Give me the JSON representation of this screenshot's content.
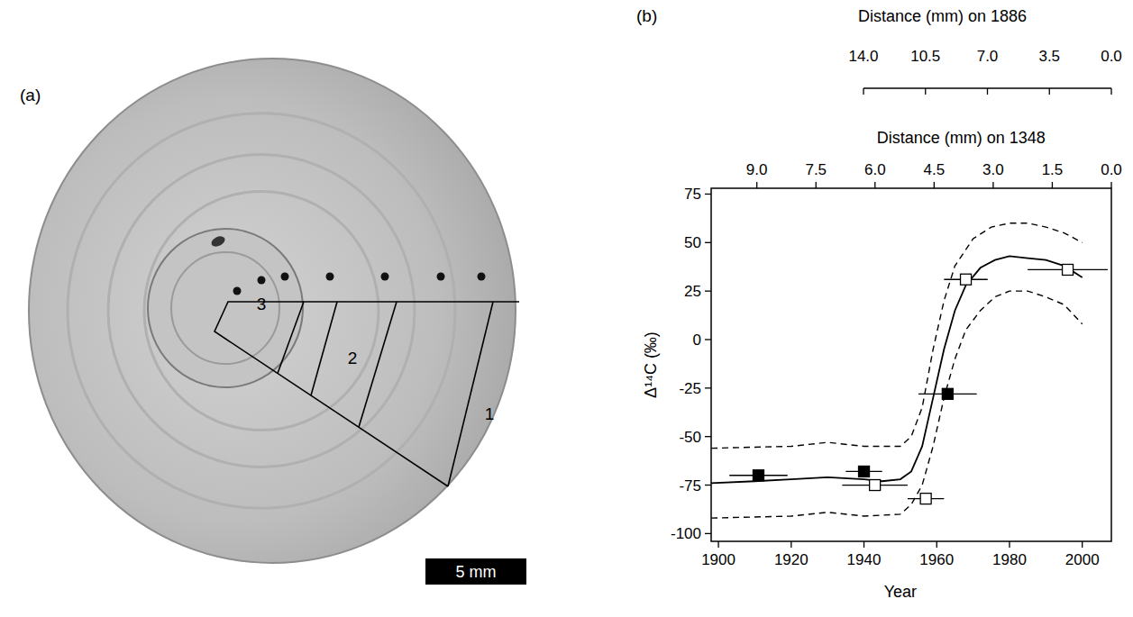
{
  "chart_data": {
    "type": "scatter",
    "panel_label": "(b)",
    "x_label": "Year",
    "y_label": "Δ¹⁴C (‰)",
    "xlim": [
      1898,
      2008
    ],
    "xticks": [
      1900,
      1920,
      1940,
      1960,
      1980,
      2000
    ],
    "ylim": [
      -104,
      78
    ],
    "yticks": [
      -100,
      -75,
      -50,
      -25,
      0,
      25,
      50,
      75
    ],
    "x2_label": "Distance (mm) on 1348",
    "x2lim": [
      10.16,
      0
    ],
    "x2ticks": [
      {
        "value": 9,
        "label": "9.0"
      },
      {
        "value": 7.5,
        "label": "7.5"
      },
      {
        "value": 6,
        "label": "6.0"
      },
      {
        "value": 4.5,
        "label": "4.5"
      },
      {
        "value": 3,
        "label": "3.0"
      },
      {
        "value": 1.5,
        "label": "1.5"
      },
      {
        "value": 0,
        "label": "0.0"
      }
    ],
    "x3_label": "Distance (mm) on 1886",
    "x3lim": [
      14,
      0
    ],
    "x3ticks": [
      {
        "value": 14,
        "label": "14.0"
      },
      {
        "value": 10.5,
        "label": "10.5"
      },
      {
        "value": 7,
        "label": "7.0"
      },
      {
        "value": 3.5,
        "label": "3.5"
      },
      {
        "value": 0,
        "label": "0.0"
      }
    ],
    "series": [
      {
        "type": "line",
        "line_style": "solid",
        "color": "#000000",
        "x": [
          1898,
          1910,
          1920,
          1930,
          1940,
          1945,
          1950,
          1953,
          1956,
          1959,
          1962,
          1965,
          1968,
          1972,
          1976,
          1980,
          1985,
          1990,
          1995,
          2000
        ],
        "values": [
          -74,
          -73,
          -72,
          -71,
          -72,
          -73,
          -72,
          -68,
          -55,
          -30,
          -5,
          15,
          28,
          37,
          41,
          43,
          42,
          41,
          38,
          32
        ]
      },
      {
        "type": "line",
        "line_style": "dashed",
        "color": "#000000",
        "x": [
          1898,
          1920,
          1930,
          1940,
          1950,
          1953,
          1956,
          1959,
          1962,
          1965,
          1970,
          1975,
          1980,
          1985,
          1990,
          1995,
          2000
        ],
        "values": [
          -56,
          -55,
          -53,
          -55,
          -55,
          -50,
          -35,
          -5,
          20,
          38,
          52,
          58,
          60,
          60,
          58,
          55,
          50
        ]
      },
      {
        "type": "line",
        "line_style": "dashed",
        "color": "#000000",
        "x": [
          1898,
          1920,
          1930,
          1940,
          1950,
          1953,
          1956,
          1959,
          1962,
          1965,
          1968,
          1972,
          1976,
          1980,
          1985,
          1990,
          1995,
          2000
        ],
        "values": [
          -92,
          -91,
          -89,
          -91,
          -90,
          -85,
          -75,
          -55,
          -30,
          -10,
          5,
          15,
          22,
          25,
          25,
          22,
          18,
          8
        ]
      },
      {
        "type": "scatter",
        "marker": "filled_square",
        "color": "#000000",
        "x": [
          1911,
          1940,
          1963
        ],
        "values": [
          -70,
          -68,
          -28
        ],
        "x_error": [
          8,
          5,
          8
        ]
      },
      {
        "type": "scatter",
        "marker": "open_square",
        "color": "#000000",
        "x": [
          1943,
          1957,
          1968,
          1996
        ],
        "values": [
          -75,
          -82,
          31,
          36
        ],
        "x_error": [
          9,
          5,
          6,
          11
        ]
      }
    ]
  },
  "image_panel": {
    "label": "(a)",
    "sections": [
      1,
      2,
      3
    ],
    "scale_bar": "5 mm"
  }
}
